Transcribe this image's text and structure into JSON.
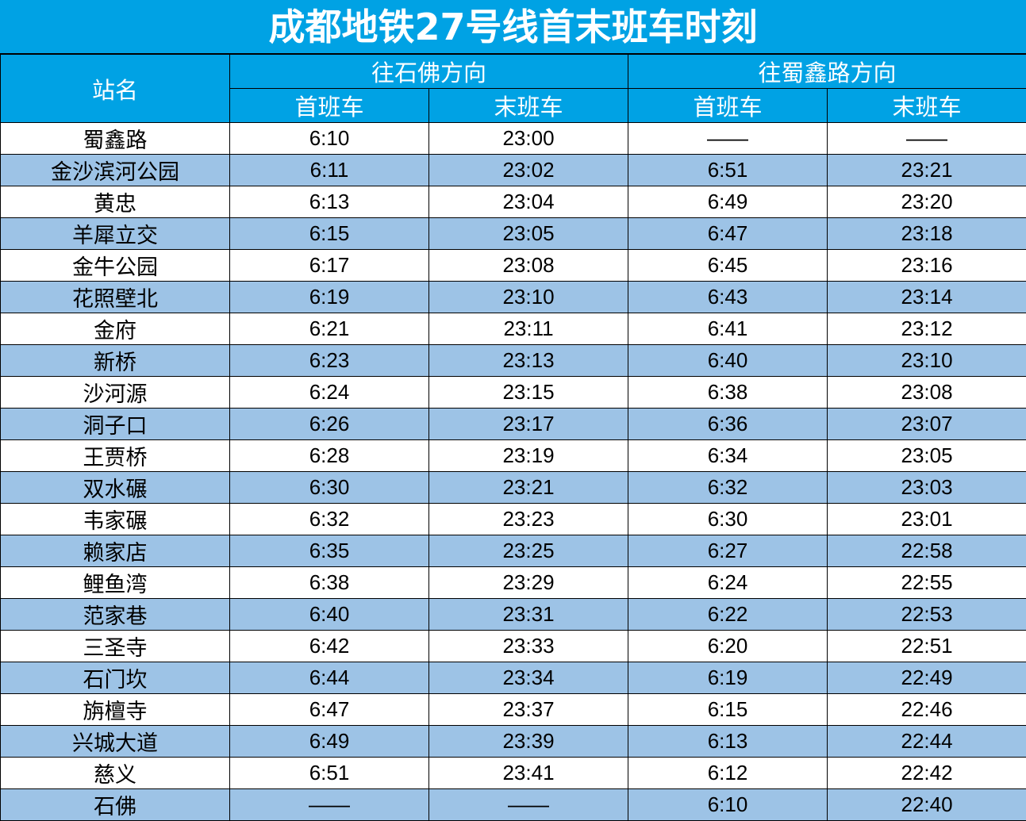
{
  "title": "成都地铁27号线首末班车时刻",
  "colors": {
    "header_bg": "#00a2e4",
    "header_text": "#ffffff",
    "stripe": "#9dc3e6",
    "row_bg": "#ffffff",
    "border": "#000000"
  },
  "header": {
    "station_label": "站名",
    "direction_1": "往石佛方向",
    "direction_2": "往蜀鑫路方向",
    "first_train": "首班车",
    "last_train": "末班车"
  },
  "rows": [
    {
      "station": "蜀鑫路",
      "d1_first": "6:10",
      "d1_last": "23:00",
      "d2_first": "——",
      "d2_last": "——"
    },
    {
      "station": "金沙滨河公园",
      "d1_first": "6:11",
      "d1_last": "23:02",
      "d2_first": "6:51",
      "d2_last": "23:21"
    },
    {
      "station": "黄忠",
      "d1_first": "6:13",
      "d1_last": "23:04",
      "d2_first": "6:49",
      "d2_last": "23:20"
    },
    {
      "station": "羊犀立交",
      "d1_first": "6:15",
      "d1_last": "23:05",
      "d2_first": "6:47",
      "d2_last": "23:18"
    },
    {
      "station": "金牛公园",
      "d1_first": "6:17",
      "d1_last": "23:08",
      "d2_first": "6:45",
      "d2_last": "23:16"
    },
    {
      "station": "花照壁北",
      "d1_first": "6:19",
      "d1_last": "23:10",
      "d2_first": "6:43",
      "d2_last": "23:14"
    },
    {
      "station": "金府",
      "d1_first": "6:21",
      "d1_last": "23:11",
      "d2_first": "6:41",
      "d2_last": "23:12"
    },
    {
      "station": "新桥",
      "d1_first": "6:23",
      "d1_last": "23:13",
      "d2_first": "6:40",
      "d2_last": "23:10"
    },
    {
      "station": "沙河源",
      "d1_first": "6:24",
      "d1_last": "23:15",
      "d2_first": "6:38",
      "d2_last": "23:08"
    },
    {
      "station": "洞子口",
      "d1_first": "6:26",
      "d1_last": "23:17",
      "d2_first": "6:36",
      "d2_last": "23:07"
    },
    {
      "station": "王贾桥",
      "d1_first": "6:28",
      "d1_last": "23:19",
      "d2_first": "6:34",
      "d2_last": "23:05"
    },
    {
      "station": "双水碾",
      "d1_first": "6:30",
      "d1_last": "23:21",
      "d2_first": "6:32",
      "d2_last": "23:03"
    },
    {
      "station": "韦家碾",
      "d1_first": "6:32",
      "d1_last": "23:23",
      "d2_first": "6:30",
      "d2_last": "23:01"
    },
    {
      "station": "赖家店",
      "d1_first": "6:35",
      "d1_last": "23:25",
      "d2_first": "6:27",
      "d2_last": "22:58"
    },
    {
      "station": "鲤鱼湾",
      "d1_first": "6:38",
      "d1_last": "23:29",
      "d2_first": "6:24",
      "d2_last": "22:55"
    },
    {
      "station": "范家巷",
      "d1_first": "6:40",
      "d1_last": "23:31",
      "d2_first": "6:22",
      "d2_last": "22:53"
    },
    {
      "station": "三圣寺",
      "d1_first": "6:42",
      "d1_last": "23:33",
      "d2_first": "6:20",
      "d2_last": "22:51"
    },
    {
      "station": "石门坎",
      "d1_first": "6:44",
      "d1_last": "23:34",
      "d2_first": "6:19",
      "d2_last": "22:49"
    },
    {
      "station": "旃檀寺",
      "d1_first": "6:47",
      "d1_last": "23:37",
      "d2_first": "6:15",
      "d2_last": "22:46"
    },
    {
      "station": "兴城大道",
      "d1_first": "6:49",
      "d1_last": "23:39",
      "d2_first": "6:13",
      "d2_last": "22:44"
    },
    {
      "station": "慈义",
      "d1_first": "6:51",
      "d1_last": "23:41",
      "d2_first": "6:12",
      "d2_last": "22:42"
    },
    {
      "station": "石佛",
      "d1_first": "——",
      "d1_last": "——",
      "d2_first": "6:10",
      "d2_last": "22:40"
    }
  ]
}
